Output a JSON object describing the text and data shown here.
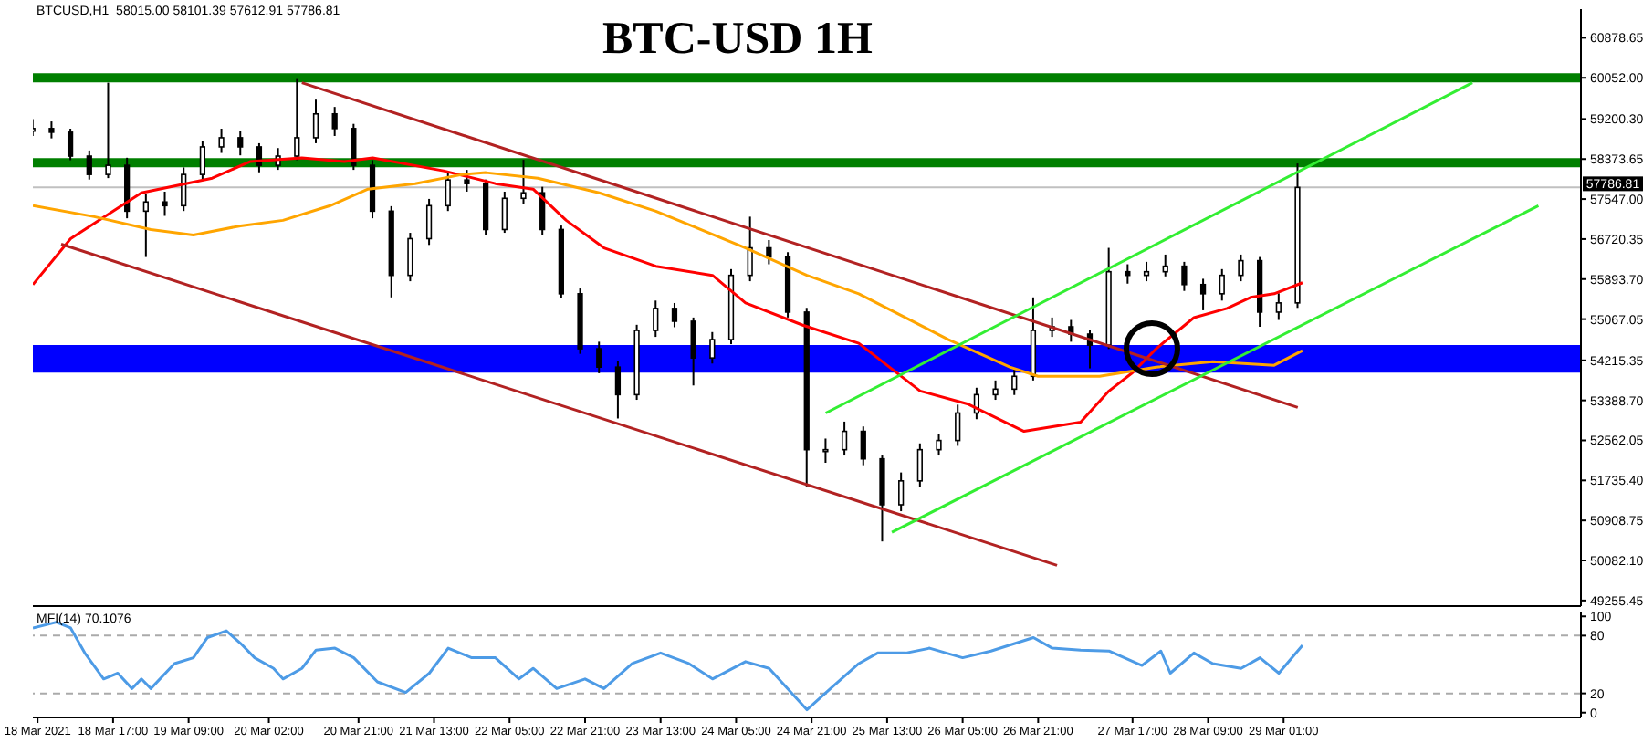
{
  "chart_data": [
    {
      "type": "candlestick",
      "title": "BTC-USD 1H",
      "annotations": [
        "BTCUSD,H1  58015.00 58101.39 57612.91 57786.81"
      ],
      "color": "#000000",
      "x": [
        "2021-03-18T00:00",
        "2021-03-18T04:00",
        "2021-03-18T08:00",
        "2021-03-18T12:00",
        "2021-03-18T16:00",
        "2021-03-18T20:00",
        "2021-03-19T00:00",
        "2021-03-19T04:00",
        "2021-03-19T08:00",
        "2021-03-19T12:00",
        "2021-03-19T16:00",
        "2021-03-19T20:00",
        "2021-03-20T00:00",
        "2021-03-20T04:00",
        "2021-03-20T08:00",
        "2021-03-20T12:00",
        "2021-03-20T16:00",
        "2021-03-20T20:00",
        "2021-03-21T00:00",
        "2021-03-21T04:00",
        "2021-03-21T08:00",
        "2021-03-21T12:00",
        "2021-03-21T16:00",
        "2021-03-21T20:00",
        "2021-03-22T00:00",
        "2021-03-22T04:00",
        "2021-03-22T08:00",
        "2021-03-22T12:00",
        "2021-03-22T16:00",
        "2021-03-22T20:00",
        "2021-03-23T00:00",
        "2021-03-23T04:00",
        "2021-03-23T08:00",
        "2021-03-23T12:00",
        "2021-03-23T16:00",
        "2021-03-23T20:00",
        "2021-03-24T00:00",
        "2021-03-24T04:00",
        "2021-03-24T08:00",
        "2021-03-24T12:00",
        "2021-03-24T16:00",
        "2021-03-24T20:00",
        "2021-03-25T00:00",
        "2021-03-25T04:00",
        "2021-03-25T08:00",
        "2021-03-25T12:00",
        "2021-03-25T16:00",
        "2021-03-25T20:00",
        "2021-03-26T00:00",
        "2021-03-26T04:00",
        "2021-03-26T08:00",
        "2021-03-26T12:00",
        "2021-03-26T16:00",
        "2021-03-26T20:00",
        "2021-03-27T00:00",
        "2021-03-27T04:00",
        "2021-03-27T08:00",
        "2021-03-27T12:00",
        "2021-03-27T16:00",
        "2021-03-27T20:00",
        "2021-03-28T00:00",
        "2021-03-28T04:00",
        "2021-03-28T08:00",
        "2021-03-28T12:00",
        "2021-03-28T16:00",
        "2021-03-28T20:00",
        "2021-03-29T00:00",
        "2021-03-29T04:00"
      ],
      "ohlc": [
        [
          58950,
          59200,
          58850,
          59003
        ],
        [
          59003,
          59150,
          58800,
          58927
        ],
        [
          58927,
          59000,
          58350,
          58434
        ],
        [
          58434,
          58550,
          57950,
          58055
        ],
        [
          58055,
          59950,
          57980,
          58244
        ],
        [
          58244,
          58400,
          57150,
          57297
        ],
        [
          57297,
          57650,
          56350,
          57487
        ],
        [
          57487,
          57700,
          57200,
          57411
        ],
        [
          57411,
          58200,
          57300,
          58055
        ],
        [
          58055,
          58750,
          57950,
          58624
        ],
        [
          58624,
          59000,
          58500,
          58813
        ],
        [
          58813,
          58950,
          58450,
          58624
        ],
        [
          58624,
          58700,
          58100,
          58244
        ],
        [
          58244,
          58600,
          58150,
          58434
        ],
        [
          58434,
          60026,
          58350,
          58813
        ],
        [
          58813,
          59600,
          58700,
          59306
        ],
        [
          59306,
          59450,
          58850,
          59003
        ],
        [
          59003,
          59100,
          58150,
          58244
        ],
        [
          58244,
          58350,
          57150,
          57297
        ],
        [
          57297,
          57400,
          55516,
          55971
        ],
        [
          55971,
          56850,
          55850,
          56729
        ],
        [
          56729,
          57550,
          56600,
          57411
        ],
        [
          57411,
          58100,
          57300,
          57941
        ],
        [
          57941,
          58150,
          57700,
          57866
        ],
        [
          57866,
          57950,
          56800,
          56918
        ],
        [
          56918,
          57700,
          56850,
          57562
        ],
        [
          57562,
          58358,
          57450,
          57676
        ],
        [
          57676,
          57800,
          56800,
          56918
        ],
        [
          56918,
          57000,
          55500,
          55591
        ],
        [
          55591,
          55700,
          54350,
          54455
        ],
        [
          54455,
          54600,
          53950,
          54076
        ],
        [
          54076,
          54200,
          53015,
          53507
        ],
        [
          53507,
          54950,
          53400,
          54834
        ],
        [
          54834,
          55450,
          54700,
          55288
        ],
        [
          55288,
          55400,
          54900,
          55023
        ],
        [
          55023,
          55100,
          53697,
          54265
        ],
        [
          54265,
          54800,
          54150,
          54644
        ],
        [
          54644,
          56100,
          54550,
          55971
        ],
        [
          55971,
          57183,
          55850,
          56539
        ],
        [
          56539,
          56700,
          56200,
          56350
        ],
        [
          56350,
          56450,
          55100,
          55212
        ],
        [
          55212,
          55300,
          51612,
          52370
        ],
        [
          52370,
          52600,
          52100,
          52370
        ],
        [
          52370,
          52950,
          52250,
          52749
        ],
        [
          52749,
          52850,
          52050,
          52181
        ],
        [
          52181,
          52250,
          50475,
          51233
        ],
        [
          51233,
          51900,
          51100,
          51726
        ],
        [
          51726,
          52500,
          51600,
          52370
        ],
        [
          52370,
          52700,
          52250,
          52560
        ],
        [
          52560,
          53300,
          52450,
          53128
        ],
        [
          53128,
          53650,
          53000,
          53507
        ],
        [
          53507,
          53800,
          53400,
          53621
        ],
        [
          53621,
          54050,
          53500,
          53886
        ],
        [
          53886,
          55516,
          53800,
          54834
        ],
        [
          54834,
          55100,
          54700,
          54909
        ],
        [
          54909,
          55050,
          54600,
          54758
        ],
        [
          54758,
          54850,
          54050,
          54530
        ],
        [
          54530,
          56539,
          54450,
          56046
        ],
        [
          56046,
          56200,
          55800,
          55971
        ],
        [
          55971,
          56250,
          55850,
          56046
        ],
        [
          56046,
          56400,
          55950,
          56160
        ],
        [
          56160,
          56250,
          55650,
          55781
        ],
        [
          55781,
          55900,
          55250,
          55591
        ],
        [
          55591,
          56100,
          55450,
          55971
        ],
        [
          55971,
          56400,
          55850,
          56274
        ],
        [
          56274,
          56350,
          54909,
          55212
        ],
        [
          55212,
          55600,
          55050,
          55402
        ],
        [
          55402,
          58282,
          55300,
          57786.81
        ]
      ],
      "series": [
        {
          "type": "line",
          "color": "#ff0000",
          "x": [
            "2021-03-18T00:00",
            "2021-03-18T08:00",
            "2021-03-18T23:00",
            "2021-03-19T14:00",
            "2021-03-19T22:00",
            "2021-03-20T09:00",
            "2021-03-20T18:00",
            "2021-03-21T00:00",
            "2021-03-21T15:00",
            "2021-03-22T02:00",
            "2021-03-22T10:00",
            "2021-03-22T17:00",
            "2021-03-23T01:00",
            "2021-03-23T12:00",
            "2021-03-24T00:00",
            "2021-03-24T07:00",
            "2021-03-24T19:00",
            "2021-03-25T07:00",
            "2021-03-25T20:00",
            "2021-03-26T06:00",
            "2021-03-26T18:00",
            "2021-03-27T06:00",
            "2021-03-27T12:00",
            "2021-03-27T17:00",
            "2021-03-27T22:00",
            "2021-03-28T06:00",
            "2021-03-28T13:00",
            "2021-03-28T18:00",
            "2021-03-28T23:00",
            "2021-03-29T05:00"
          ],
          "values": [
            55781,
            56729,
            57676,
            57979,
            58320,
            58396,
            58320,
            58396,
            58131,
            57866,
            57752,
            57108,
            56539,
            56160,
            55971,
            55402,
            54947,
            54568,
            53583,
            53317,
            52749,
            52939,
            53583,
            53962,
            54455,
            55098,
            55288,
            55516,
            55591,
            55819
          ]
        },
        {
          "type": "line",
          "color": "#ffa500",
          "x": [
            "2021-03-18T00:00",
            "2021-03-18T13:00",
            "2021-03-19T01:00",
            "2021-03-19T10:00",
            "2021-03-19T20:00",
            "2021-03-20T05:00",
            "2021-03-20T15:00",
            "2021-03-20T23:00",
            "2021-03-21T09:00",
            "2021-03-21T19:00",
            "2021-03-22T00:00",
            "2021-03-22T11:00",
            "2021-03-23T00:00",
            "2021-03-23T12:00",
            "2021-03-24T07:00",
            "2021-03-24T20:00",
            "2021-03-25T07:00",
            "2021-03-26T02:00",
            "2021-03-26T15:00",
            "2021-03-26T21:00",
            "2021-03-27T10:00",
            "2021-03-27T22:00",
            "2021-03-28T10:00",
            "2021-03-28T23:00",
            "2021-03-29T05:00"
          ],
          "values": [
            57411,
            57183,
            56918,
            56804,
            56994,
            57108,
            57411,
            57752,
            57866,
            58055,
            58093,
            57979,
            57676,
            57297,
            56539,
            55971,
            55591,
            54644,
            54076,
            53886,
            53886,
            54076,
            54189,
            54114,
            54417
          ]
        },
        {
          "type": "line",
          "color": "#b22222",
          "x": [
            "2021-03-20T09:00",
            "2021-03-29T04:00"
          ],
          "values": [
            59950,
            53242
          ]
        },
        {
          "type": "line",
          "color": "#b22222",
          "x": [
            "2021-03-18T06:00",
            "2021-03-27T01:00"
          ],
          "values": [
            56615,
            49982
          ]
        },
        {
          "type": "line",
          "color": "#33ee33",
          "x": [
            "2021-03-25T00:00",
            "2021-03-30T17:00"
          ],
          "values": [
            53128,
            59950
          ]
        },
        {
          "type": "line",
          "color": "#33ee33",
          "x": [
            "2021-03-25T14:00",
            "2021-03-31T07:00"
          ],
          "values": [
            50664,
            57411
          ]
        }
      ],
      "xlim": [
        "2021-03-18T00:00",
        "2021-03-31T16:00"
      ],
      "ylim": [
        49140,
        61470
      ],
      "yticks": [
        {
          "value": 60878.65,
          "label": "60878.65"
        },
        {
          "value": 60052,
          "label": "60052.00"
        },
        {
          "value": 59200.3,
          "label": "59200.30"
        },
        {
          "value": 58373.65,
          "label": "58373.65"
        },
        {
          "value": 57547,
          "label": "57547.00"
        },
        {
          "value": 56720.35,
          "label": "56720.35"
        },
        {
          "value": 55893.7,
          "label": "55893.70"
        },
        {
          "value": 55067.05,
          "label": "55067.05"
        },
        {
          "value": 54215.35,
          "label": "54215.35"
        },
        {
          "value": 53388.7,
          "label": "53388.70"
        },
        {
          "value": 52562.05,
          "label": "52562.05"
        },
        {
          "value": 51735.4,
          "label": "51735.40"
        },
        {
          "value": 50908.75,
          "label": "50908.75"
        },
        {
          "value": 50082.1,
          "label": "50082.10"
        },
        {
          "value": 49255.45,
          "label": "49255.45"
        }
      ],
      "tick_labels": "y",
      "ref_lines": [
        {
          "axis": "y",
          "value": 60052,
          "color": "#007f00"
        },
        {
          "axis": "y",
          "value": 58300,
          "color": "#007f00"
        },
        {
          "axis": "y",
          "value": 57786.81,
          "label": "57786.81",
          "color": "#c0c0c0"
        }
      ],
      "bands": [
        {
          "axis": "y",
          "from": 53960,
          "to": 54530,
          "color": "#0000ff"
        }
      ]
    },
    {
      "type": "line",
      "title": "MFI(14) 70.1076",
      "series": [
        {
          "color": "#4d9be6",
          "x": [
            "2021-03-18T00:00",
            "2021-03-18T05:00",
            "2021-03-18T08:00",
            "2021-03-18T11:00",
            "2021-03-18T15:00",
            "2021-03-18T18:00",
            "2021-03-18T21:00",
            "2021-03-18T23:00",
            "2021-03-19T01:00",
            "2021-03-19T06:00",
            "2021-03-19T10:00",
            "2021-03-19T13:00",
            "2021-03-19T17:00",
            "2021-03-19T20:00",
            "2021-03-19T23:00",
            "2021-03-20T03:00",
            "2021-03-20T05:00",
            "2021-03-20T09:00",
            "2021-03-20T12:00",
            "2021-03-20T16:00",
            "2021-03-20T20:00",
            "2021-03-21T01:00",
            "2021-03-21T07:00",
            "2021-03-21T12:00",
            "2021-03-21T16:00",
            "2021-03-21T21:00",
            "2021-03-22T02:00",
            "2021-03-22T07:00",
            "2021-03-22T10:00",
            "2021-03-22T15:00",
            "2021-03-22T21:00",
            "2021-03-23T01:00",
            "2021-03-23T07:00",
            "2021-03-23T13:00",
            "2021-03-23T19:00",
            "2021-03-24T00:00",
            "2021-03-24T07:00",
            "2021-03-24T12:00",
            "2021-03-24T20:00",
            "2021-03-25T01:00",
            "2021-03-25T07:00",
            "2021-03-25T11:00",
            "2021-03-25T17:00",
            "2021-03-25T22:00",
            "2021-03-26T05:00",
            "2021-03-26T11:00",
            "2021-03-26T20:00",
            "2021-03-27T00:00",
            "2021-03-27T06:00",
            "2021-03-27T12:00",
            "2021-03-27T19:00",
            "2021-03-27T23:00",
            "2021-03-28T01:00",
            "2021-03-28T06:00",
            "2021-03-28T10:00",
            "2021-03-28T16:00",
            "2021-03-28T20:00",
            "2021-03-29T00:00",
            "2021-03-29T05:00"
          ],
          "values": [
            88,
            94,
            88,
            62,
            35,
            41,
            25,
            35,
            25,
            51,
            57,
            78,
            85,
            72,
            57,
            46,
            35,
            46,
            65,
            67,
            57,
            32,
            21,
            41,
            67,
            57,
            57,
            35,
            46,
            25,
            35,
            25,
            51,
            62,
            51,
            35,
            53,
            46,
            3,
            25,
            51,
            62,
            62,
            67,
            57,
            64,
            78,
            67,
            65,
            64,
            49,
            64,
            41,
            62,
            51,
            46,
            57,
            41,
            70
          ]
        }
      ],
      "xlim": [
        "2021-03-18T00:00",
        "2021-03-31T16:00"
      ],
      "ylim": [
        -5,
        105
      ],
      "yticks": [
        100,
        80,
        20,
        0
      ],
      "xticks": [
        {
          "value": "2021-03-18T01:00",
          "label": "18 Mar 2021"
        },
        {
          "value": "2021-03-18T17:00",
          "label": "18 Mar 17:00"
        },
        {
          "value": "2021-03-19T09:00",
          "label": "19 Mar 09:00"
        },
        {
          "value": "2021-03-20T02:00",
          "label": "20 Mar 02:00"
        },
        {
          "value": "2021-03-20T21:00",
          "label": "20 Mar 21:00"
        },
        {
          "value": "2021-03-21T13:00",
          "label": "21 Mar 13:00"
        },
        {
          "value": "2021-03-22T05:00",
          "label": "22 Mar 05:00"
        },
        {
          "value": "2021-03-22T21:00",
          "label": "22 Mar 21:00"
        },
        {
          "value": "2021-03-23T13:00",
          "label": "23 Mar 13:00"
        },
        {
          "value": "2021-03-24T05:00",
          "label": "24 Mar 05:00"
        },
        {
          "value": "2021-03-24T21:00",
          "label": "24 Mar 21:00"
        },
        {
          "value": "2021-03-25T13:00",
          "label": "25 Mar 13:00"
        },
        {
          "value": "2021-03-26T05:00",
          "label": "26 Mar 05:00"
        },
        {
          "value": "2021-03-26T21:00",
          "label": "26 Mar 21:00"
        },
        {
          "value": "2021-03-27T17:00",
          "label": "27 Mar 17:00"
        },
        {
          "value": "2021-03-28T09:00",
          "label": "28 Mar 09:00"
        },
        {
          "value": "2021-03-29T01:00",
          "label": "29 Mar 01:00"
        }
      ],
      "ref_lines": [
        {
          "axis": "y",
          "value": 80,
          "color": "#aaaaaa",
          "line_style": "dashed"
        },
        {
          "axis": "y",
          "value": 20,
          "color": "#aaaaaa",
          "line_style": "dashed"
        }
      ]
    }
  ]
}
